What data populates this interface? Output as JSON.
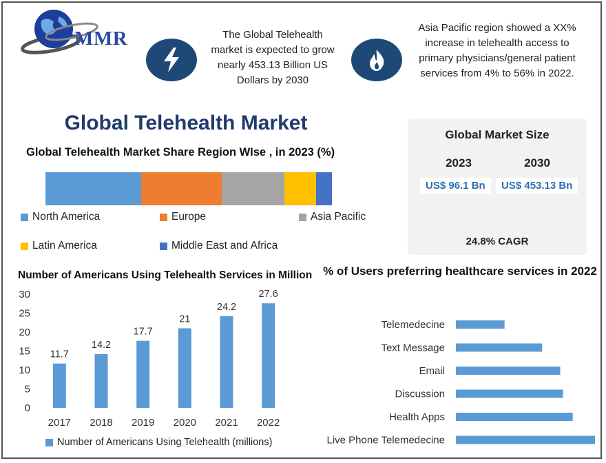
{
  "brand": {
    "logo_text": "MMR"
  },
  "blurbs": {
    "left": "The Global Telehealth market is expected to grow nearly 453.13 Billion US Dollars by 2030",
    "right": "Asia Pacific region showed a XX% increase in telehealth access to primary physicians/general  patient services from 4% to 56% in 2022."
  },
  "icons": {
    "left": "lightning-icon",
    "right": "flame-icon"
  },
  "main_title": "Global Telehealth Market",
  "market_size": {
    "title": "Global Market Size",
    "years": [
      "2023",
      "2030"
    ],
    "values": [
      "US$ 96.1 Bn",
      "US$ 453.13 Bn"
    ],
    "cagr": "24.8% CAGR"
  },
  "colors": {
    "north_america": "#5b9bd5",
    "europe": "#ed7d31",
    "asia_pacific": "#a5a5a5",
    "latin_america": "#ffc000",
    "mea": "#4472c4",
    "bar": "#5b9bd5",
    "title_blue": "#1f3b6b",
    "icon_circle": "#1e4976"
  },
  "chart_data": [
    {
      "type": "bar",
      "orientation": "horizontal-stacked-100",
      "title": "Global Telehealth Market Share Region WIse , in 2023 (%)",
      "series": [
        {
          "name": "North America",
          "value": 33.5
        },
        {
          "name": "Europe",
          "value": 28
        },
        {
          "name": "Asia Pacific",
          "value": 22
        },
        {
          "name": "Latin America",
          "value": 11
        },
        {
          "name": "Middle East and Africa",
          "value": 5.5
        }
      ],
      "legend_position": "bottom"
    },
    {
      "type": "bar",
      "title": "Number of Americans Using Telehealth Services in Million",
      "categories": [
        "2017",
        "2018",
        "2019",
        "2020",
        "2021",
        "2022"
      ],
      "values": [
        11.7,
        14.2,
        17.7,
        21,
        24.2,
        27.6
      ],
      "ylim": [
        0,
        30
      ],
      "yticks": [
        0,
        5,
        10,
        15,
        20,
        25,
        30
      ],
      "series_name": "Number of Americans Using Telehealth (millions)",
      "legend_position": "bottom",
      "grid": false
    },
    {
      "type": "bar",
      "orientation": "horizontal",
      "title": "% of Users preferring healthcare services in 2022",
      "categories": [
        "Telemedecine",
        "Text Message",
        "Email",
        "Discussion",
        "Health Apps",
        "Live Phone Telemedecine"
      ],
      "values": [
        35,
        62,
        75,
        77,
        84,
        100
      ],
      "xlim": [
        0,
        100
      ],
      "axis_labels_shown": false
    }
  ]
}
